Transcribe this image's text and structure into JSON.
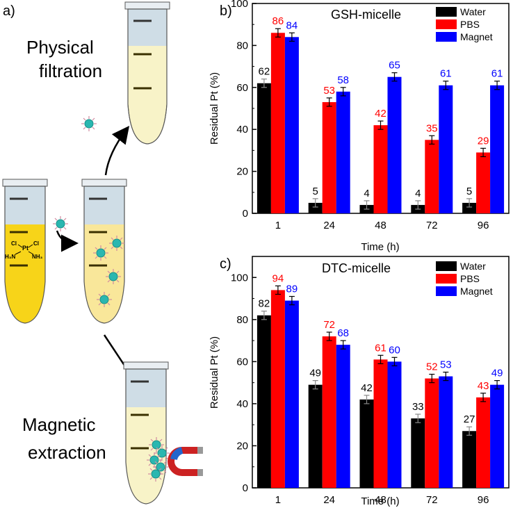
{
  "panel_a": {
    "label": "a)",
    "physical_label_1": "Physical",
    "physical_label_2": "filtration",
    "magnetic_label_1": "Magnetic",
    "magnetic_label_2": "extraction",
    "molecule": {
      "cl1": "Cl",
      "pt": "Pt",
      "cl2": "Cl",
      "nh3a": "H₃N",
      "nh3b": "NH₃"
    }
  },
  "colors": {
    "water": "#000000",
    "pbs": "#ff0000",
    "magnet": "#0000ff",
    "solution_yellow": "#f7d419",
    "solution_pale": "#f8f3c8",
    "tube_top": "#cfdde6",
    "micelle": "#2ab7b0"
  },
  "chart_data": [
    {
      "panel": "b)",
      "type": "bar",
      "title": "GSH-micelle",
      "xlabel": "Time (h)",
      "ylabel": "Residual Pt (%)",
      "ylim": [
        0,
        100
      ],
      "yticks": [
        "0",
        "20",
        "40",
        "60",
        "80",
        "100"
      ],
      "categories": [
        "1",
        "24",
        "48",
        "72",
        "96"
      ],
      "legend_position": "top-right",
      "series": [
        {
          "name": "Water",
          "values": [
            62,
            5,
            4,
            4,
            5
          ],
          "labels": [
            "62",
            "5",
            "4",
            "4",
            "5"
          ],
          "errors": [
            2,
            2,
            2,
            2,
            2
          ]
        },
        {
          "name": "PBS",
          "values": [
            86,
            53,
            42,
            35,
            29
          ],
          "labels": [
            "86",
            "53",
            "42",
            "35",
            "29"
          ],
          "errors": [
            2,
            2,
            2,
            2,
            2
          ]
        },
        {
          "name": "Magnet",
          "values": [
            84,
            58,
            65,
            61,
            61
          ],
          "labels": [
            "84",
            "58",
            "65",
            "61",
            "61"
          ],
          "errors": [
            2,
            2,
            2,
            2,
            2
          ]
        }
      ]
    },
    {
      "panel": "c)",
      "type": "bar",
      "title": "DTC-micelle",
      "xlabel": "Time (h)",
      "ylabel": "Residual Pt (%)",
      "ylim": [
        0,
        110
      ],
      "yticks": [
        "0",
        "20",
        "40",
        "60",
        "80",
        "100"
      ],
      "categories": [
        "1",
        "24",
        "48",
        "72",
        "96"
      ],
      "legend_position": "top-right",
      "series": [
        {
          "name": "Water",
          "values": [
            82,
            49,
            42,
            33,
            27
          ],
          "labels": [
            "82",
            "49",
            "42",
            "33",
            "27"
          ],
          "errors": [
            2,
            2,
            2,
            2,
            2
          ]
        },
        {
          "name": "PBS",
          "values": [
            94,
            72,
            61,
            52,
            43
          ],
          "labels": [
            "94",
            "72",
            "61",
            "52",
            "43"
          ],
          "errors": [
            2,
            2,
            2,
            2,
            2
          ]
        },
        {
          "name": "Magnet",
          "values": [
            89,
            68,
            60,
            53,
            49
          ],
          "labels": [
            "89",
            "68",
            "60",
            "53",
            "49"
          ],
          "errors": [
            2,
            2,
            2,
            2,
            2
          ]
        }
      ]
    }
  ]
}
